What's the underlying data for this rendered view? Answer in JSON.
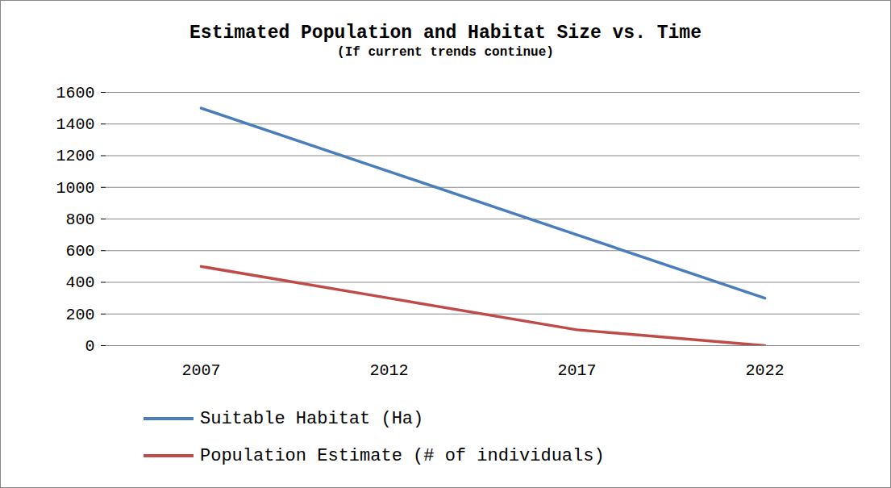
{
  "chart_data": {
    "type": "line",
    "title": "Estimated Population and Habitat Size vs. Time",
    "subtitle": "(If current trends continue)",
    "categories": [
      "2007",
      "2012",
      "2017",
      "2022"
    ],
    "series": [
      {
        "name": "Suitable Habitat (Ha)",
        "color": "#4a7ebb",
        "values": [
          1500,
          1100,
          700,
          300
        ]
      },
      {
        "name": "Population Estimate (# of individuals)",
        "color": "#be4b48",
        "values": [
          500,
          300,
          100,
          0
        ]
      }
    ],
    "ylim": [
      0,
      1600
    ],
    "yticks": [
      0,
      200,
      400,
      600,
      800,
      1000,
      1200,
      1400,
      1600
    ],
    "grid": true,
    "legend": "bottom"
  }
}
